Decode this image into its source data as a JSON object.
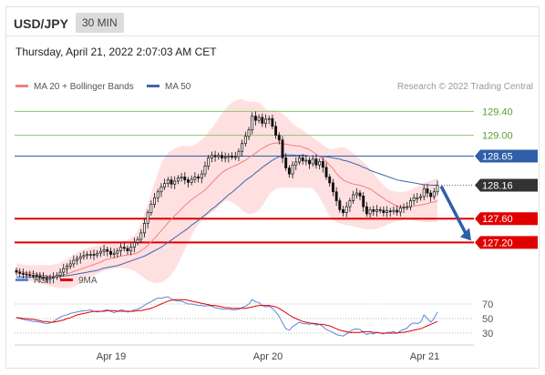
{
  "header": {
    "symbol": "USD/JPY",
    "timeframe": "30 MIN"
  },
  "timestamp": "Thursday, April 21, 2022 2:07:03 AM CET",
  "credit": "Research © 2022 Trading Central",
  "colors": {
    "ma20": "#f08080",
    "bollinger": "#ffd6d6",
    "ma50": "#3a66b0",
    "support": "#e00000",
    "pivot": "#2e5fa8",
    "resistance": "#8cc56a",
    "last": "#333333",
    "candle": "#111111",
    "rsi": "#5b86d6",
    "rsi_ma": "#e00000"
  },
  "chart_data": [
    {
      "type": "candlestick",
      "title": "",
      "legend": [
        {
          "label": "MA 20 + Bollinger Bands",
          "color": "#f08080"
        },
        {
          "label": "MA 50",
          "color": "#3a66b0"
        }
      ],
      "legend_position": "top-left",
      "x_ticks": [
        "Apr 19",
        "Apr 20",
        "Apr 21"
      ],
      "ylim": [
        126.9,
        129.62
      ],
      "price_levels": [
        {
          "label": "129.40",
          "value": 129.4,
          "kind": "resistance"
        },
        {
          "label": "129.00",
          "value": 129.0,
          "kind": "resistance"
        },
        {
          "label": "128.65",
          "value": 128.65,
          "kind": "pivot"
        },
        {
          "label": "128.16",
          "value": 128.16,
          "kind": "last"
        },
        {
          "label": "127.60",
          "value": 127.6,
          "kind": "support"
        },
        {
          "label": "127.20",
          "value": 127.2,
          "kind": "support"
        }
      ],
      "close": [
        126.7,
        126.68,
        126.67,
        126.66,
        126.65,
        126.65,
        126.64,
        126.62,
        126.6,
        126.58,
        126.6,
        126.62,
        126.65,
        126.7,
        126.76,
        126.8,
        126.84,
        126.9,
        126.93,
        126.96,
        126.98,
        127.0,
        127.0,
        126.99,
        127.02,
        127.05,
        127.08,
        127.05,
        127.0,
        127.02,
        127.06,
        127.12,
        127.1,
        127.06,
        127.12,
        127.2,
        127.25,
        127.36,
        127.52,
        127.7,
        127.84,
        127.95,
        128.05,
        128.13,
        128.19,
        128.25,
        128.18,
        128.23,
        128.28,
        128.3,
        128.25,
        128.21,
        128.26,
        128.3,
        128.28,
        128.35,
        128.48,
        128.62,
        128.66,
        128.64,
        128.66,
        128.62,
        128.63,
        128.65,
        128.64,
        128.64,
        128.73,
        128.86,
        128.98,
        129.09,
        129.32,
        129.25,
        129.3,
        129.2,
        129.27,
        129.28,
        129.15,
        129.0,
        128.92,
        128.62,
        128.45,
        128.35,
        128.5,
        128.55,
        128.62,
        128.57,
        128.58,
        128.52,
        128.6,
        128.5,
        128.56,
        128.46,
        128.3,
        128.2,
        128.05,
        127.9,
        127.75,
        127.7,
        127.8,
        127.9,
        128.0,
        128.03,
        127.98,
        127.8,
        127.68,
        127.75,
        127.72,
        127.75,
        127.74,
        127.7,
        127.73,
        127.72,
        127.74,
        127.71,
        127.78,
        127.79,
        127.8,
        127.9,
        127.95,
        127.95,
        127.97,
        128.1,
        128.03,
        127.97,
        128.05,
        128.16
      ],
      "ma20": [
        126.72,
        126.71,
        126.7,
        126.69,
        126.69,
        126.68,
        126.67,
        126.66,
        126.65,
        126.64,
        126.63,
        126.63,
        126.63,
        126.64,
        126.66,
        126.67,
        126.69,
        126.71,
        126.73,
        126.75,
        126.77,
        126.79,
        126.81,
        126.83,
        126.85,
        126.87,
        126.9,
        126.92,
        126.93,
        126.94,
        126.96,
        126.97,
        126.98,
        126.99,
        127.0,
        127.01,
        127.03,
        127.06,
        127.1,
        127.15,
        127.21,
        127.27,
        127.33,
        127.4,
        127.46,
        127.53,
        127.59,
        127.65,
        127.7,
        127.76,
        127.82,
        127.87,
        127.92,
        127.96,
        128.0,
        128.04,
        128.08,
        128.14,
        128.2,
        128.26,
        128.32,
        128.37,
        128.41,
        128.44,
        128.47,
        128.49,
        128.52,
        128.55,
        128.58,
        128.62,
        128.66,
        128.7,
        128.74,
        128.78,
        128.81,
        128.84,
        128.86,
        128.87,
        128.87,
        128.86,
        128.85,
        128.84,
        128.83,
        128.82,
        128.82,
        128.8,
        128.78,
        128.76,
        128.72,
        128.68,
        128.64,
        128.6,
        128.56,
        128.5,
        128.44,
        128.36,
        128.3,
        128.25,
        128.22,
        128.2,
        128.18,
        128.17,
        128.16,
        128.14,
        128.12,
        128.1,
        128.06,
        128.02,
        127.98,
        127.94,
        127.9,
        127.87,
        127.84,
        127.81,
        127.8,
        127.79,
        127.79,
        127.8,
        127.81,
        127.82,
        127.83,
        127.84,
        127.85,
        127.87,
        127.88,
        127.9
      ],
      "ma50": [
        126.62,
        126.62,
        126.62,
        126.62,
        126.62,
        126.62,
        126.62,
        126.62,
        126.62,
        126.62,
        126.62,
        126.62,
        126.63,
        126.63,
        126.64,
        126.64,
        126.65,
        126.66,
        126.67,
        126.68,
        126.69,
        126.7,
        126.71,
        126.72,
        126.73,
        126.75,
        126.77,
        126.78,
        126.79,
        126.8,
        126.81,
        126.83,
        126.85,
        126.87,
        126.89,
        126.91,
        126.93,
        126.95,
        126.97,
        127.0,
        127.03,
        127.06,
        127.09,
        127.12,
        127.16,
        127.2,
        127.24,
        127.28,
        127.32,
        127.36,
        127.4,
        127.44,
        127.49,
        127.53,
        127.57,
        127.62,
        127.66,
        127.71,
        127.76,
        127.8,
        127.85,
        127.9,
        127.95,
        128.0,
        128.04,
        128.09,
        128.14,
        128.19,
        128.24,
        128.28,
        128.32,
        128.37,
        128.41,
        128.46,
        128.5,
        128.54,
        128.58,
        128.61,
        128.64,
        128.66,
        128.67,
        128.67,
        128.67,
        128.66,
        128.66,
        128.66,
        128.66,
        128.65,
        128.65,
        128.65,
        128.65,
        128.64,
        128.64,
        128.63,
        128.62,
        128.61,
        128.6,
        128.58,
        128.57,
        128.55,
        128.53,
        128.51,
        128.49,
        128.46,
        128.44,
        128.41,
        128.39,
        128.37,
        128.35,
        128.33,
        128.31,
        128.29,
        128.27,
        128.25,
        128.24,
        128.23,
        128.22,
        128.21,
        128.2,
        128.19,
        128.18,
        128.17,
        128.17,
        128.16,
        128.16,
        128.16
      ],
      "bollinger_upper": [
        126.85,
        126.84,
        126.83,
        126.82,
        126.82,
        126.82,
        126.82,
        126.82,
        126.82,
        126.82,
        126.82,
        126.83,
        126.84,
        126.86,
        126.89,
        126.92,
        126.96,
        127.0,
        127.03,
        127.06,
        127.08,
        127.1,
        127.12,
        127.13,
        127.14,
        127.16,
        127.18,
        127.2,
        127.22,
        127.22,
        127.22,
        127.22,
        127.23,
        127.25,
        127.28,
        127.32,
        127.4,
        127.52,
        127.68,
        127.85,
        128.02,
        128.2,
        128.36,
        128.52,
        128.62,
        128.7,
        128.74,
        128.78,
        128.8,
        128.82,
        128.82,
        128.82,
        128.82,
        128.84,
        128.88,
        128.92,
        128.98,
        129.05,
        129.12,
        129.2,
        129.28,
        129.36,
        129.44,
        129.5,
        129.55,
        129.58,
        129.6,
        129.6,
        129.58,
        129.56,
        129.56,
        129.56,
        129.55,
        129.5,
        129.44,
        129.42,
        129.42,
        129.42,
        129.4,
        129.36,
        129.32,
        129.26,
        129.2,
        129.15,
        129.12,
        129.08,
        129.04,
        129.0,
        128.96,
        128.92,
        128.88,
        128.84,
        128.8,
        128.77,
        128.76,
        128.78,
        128.8,
        128.8,
        128.78,
        128.74,
        128.7,
        128.65,
        128.6,
        128.55,
        128.5,
        128.44,
        128.36,
        128.29,
        128.22,
        128.16,
        128.11,
        128.08,
        128.06,
        128.05,
        128.05,
        128.05,
        128.06,
        128.08,
        128.11,
        128.14,
        128.17,
        128.2,
        128.22,
        128.24,
        128.26,
        128.28
      ],
      "bollinger_lower": [
        126.57,
        126.57,
        126.56,
        126.56,
        126.55,
        126.54,
        126.53,
        126.52,
        126.5,
        126.48,
        126.46,
        126.45,
        126.44,
        126.43,
        126.43,
        126.43,
        126.44,
        126.46,
        126.48,
        126.51,
        126.55,
        126.58,
        126.61,
        126.64,
        126.67,
        126.7,
        126.72,
        126.74,
        126.75,
        126.76,
        126.77,
        126.78,
        126.77,
        126.76,
        126.74,
        126.72,
        126.68,
        126.64,
        126.6,
        126.56,
        126.54,
        126.52,
        126.52,
        126.53,
        126.56,
        126.6,
        126.66,
        126.74,
        126.84,
        126.96,
        127.08,
        127.2,
        127.32,
        127.42,
        127.5,
        127.56,
        127.62,
        127.66,
        127.7,
        127.74,
        127.8,
        127.86,
        127.9,
        127.9,
        127.88,
        127.84,
        127.8,
        127.74,
        127.7,
        127.68,
        127.68,
        127.7,
        127.74,
        127.82,
        127.9,
        128.0,
        128.06,
        128.1,
        128.12,
        128.12,
        128.12,
        128.12,
        128.12,
        128.12,
        128.12,
        128.12,
        128.12,
        128.12,
        128.1,
        128.04,
        127.96,
        127.86,
        127.74,
        127.64,
        127.58,
        127.54,
        127.52,
        127.5,
        127.49,
        127.48,
        127.47,
        127.46,
        127.44,
        127.43,
        127.42,
        127.42,
        127.42,
        127.43,
        127.45,
        127.47,
        127.5,
        127.52,
        127.54,
        127.56,
        127.57,
        127.58,
        127.58,
        127.58,
        127.57,
        127.56,
        127.55,
        127.54,
        127.54,
        127.54,
        127.54,
        127.54
      ]
    },
    {
      "type": "line",
      "title": "",
      "legend": [
        {
          "label": "RSI",
          "color": "#5b86d6"
        },
        {
          "label": "9MA",
          "color": "#e00000"
        }
      ],
      "legend_position": "top-left",
      "y_ticks": [
        70,
        50,
        30
      ],
      "ylim": [
        20,
        90
      ],
      "series": [
        {
          "name": "RSI",
          "values": [
            52,
            50,
            49,
            48,
            47,
            46,
            46,
            45,
            44,
            43,
            44,
            46,
            49,
            52,
            54,
            55,
            57,
            58,
            59,
            60,
            61,
            61,
            62,
            60,
            59,
            60,
            61,
            62,
            60,
            58,
            60,
            62,
            61,
            59,
            60,
            62,
            63,
            65,
            68,
            71,
            73,
            76,
            78,
            78,
            79,
            80,
            77,
            75,
            74,
            74,
            72,
            70,
            70,
            69,
            68,
            68,
            67,
            68,
            67,
            65,
            64,
            63,
            63,
            63,
            62,
            62,
            63,
            65,
            67,
            70,
            76,
            73,
            72,
            68,
            66,
            67,
            64,
            59,
            53,
            44,
            36,
            34,
            39,
            42,
            45,
            43,
            43,
            42,
            44,
            41,
            42,
            39,
            35,
            33,
            31,
            28,
            27,
            26,
            29,
            32,
            35,
            36,
            35,
            31,
            28,
            30,
            29,
            31,
            30,
            29,
            31,
            31,
            32,
            30,
            33,
            35,
            37,
            42,
            44,
            43,
            45,
            55,
            50,
            45,
            50,
            59
          ]
        },
        {
          "name": "9MA",
          "values": [
            51,
            51,
            50,
            50,
            49,
            49,
            48,
            47,
            46,
            46,
            45,
            45,
            46,
            47,
            48,
            50,
            51,
            53,
            55,
            56,
            57,
            58,
            59,
            60,
            60,
            60,
            60,
            61,
            61,
            61,
            60,
            60,
            60,
            60,
            60,
            60,
            61,
            61,
            62,
            63,
            64,
            66,
            68,
            70,
            72,
            74,
            75,
            76,
            76,
            76,
            76,
            75,
            74,
            73,
            72,
            71,
            70,
            69,
            68,
            68,
            67,
            66,
            65,
            65,
            64,
            64,
            64,
            64,
            64,
            65,
            66,
            67,
            68,
            68,
            68,
            68,
            67,
            66,
            64,
            61,
            58,
            55,
            52,
            50,
            48,
            46,
            45,
            44,
            43,
            43,
            42,
            42,
            41,
            40,
            38,
            36,
            34,
            33,
            32,
            31,
            31,
            31,
            31,
            32,
            32,
            32,
            31,
            31,
            30,
            30,
            30,
            30,
            30,
            30,
            31,
            31,
            32,
            33,
            34,
            35,
            36,
            38,
            40,
            42,
            44,
            46
          ]
        }
      ]
    }
  ]
}
